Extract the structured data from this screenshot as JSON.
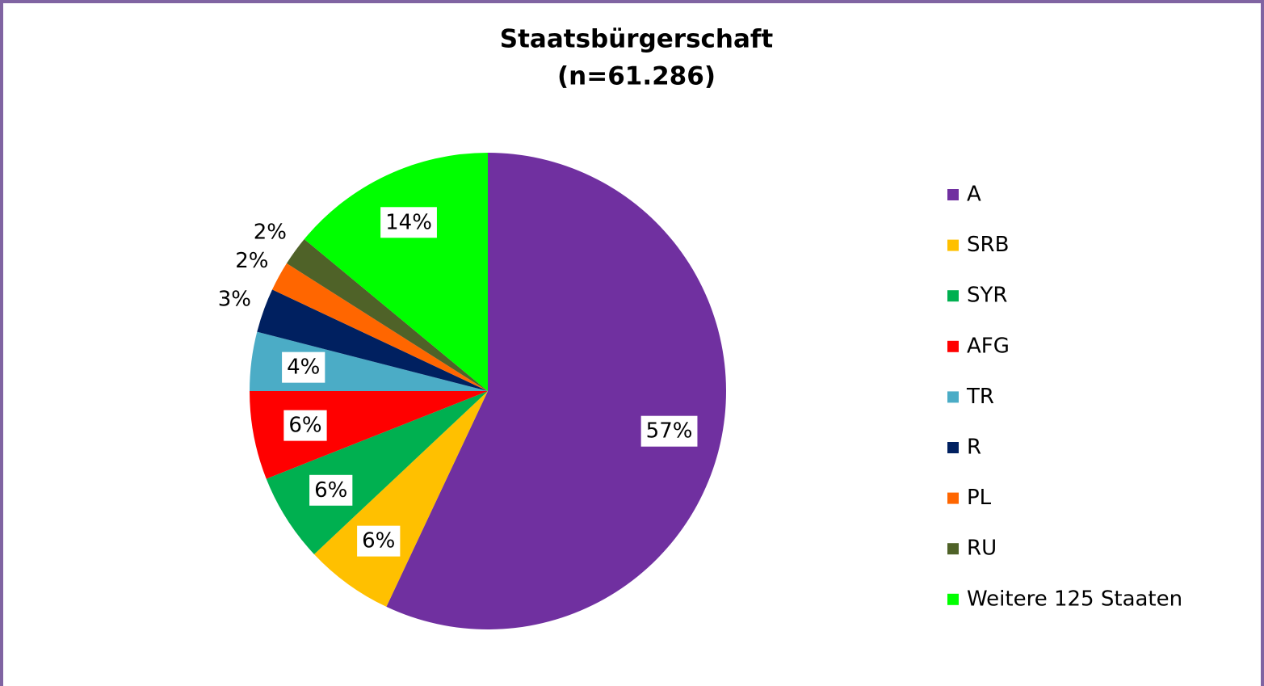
{
  "chart_data": {
    "type": "pie",
    "title": "Staatsbürgerschaft",
    "subtitle": "(n=61.286)",
    "categories": [
      "A",
      "SRB",
      "SYR",
      "AFG",
      "TR",
      "R",
      "PL",
      "RU",
      "Weitere 125 Staaten"
    ],
    "values": [
      57,
      6,
      6,
      6,
      4,
      3,
      2,
      2,
      14
    ],
    "value_labels": [
      "57%",
      "6%",
      "6%",
      "6%",
      "4%",
      "3%",
      "2%",
      "2%",
      "14%"
    ],
    "colors": [
      "#7030a0",
      "#ffc000",
      "#00b050",
      "#ff0000",
      "#4bacc6",
      "#002060",
      "#ff6600",
      "#4f6228",
      "#00ff00"
    ],
    "legend": "right"
  }
}
